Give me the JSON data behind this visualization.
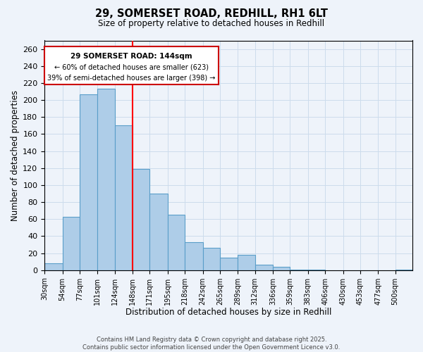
{
  "title": "29, SOMERSET ROAD, REDHILL, RH1 6LT",
  "subtitle": "Size of property relative to detached houses in Redhill",
  "xlabel": "Distribution of detached houses by size in Redhill",
  "ylabel": "Number of detached properties",
  "bar_labels": [
    "30sqm",
    "54sqm",
    "77sqm",
    "101sqm",
    "124sqm",
    "148sqm",
    "171sqm",
    "195sqm",
    "218sqm",
    "242sqm",
    "265sqm",
    "289sqm",
    "312sqm",
    "336sqm",
    "359sqm",
    "383sqm",
    "406sqm",
    "430sqm",
    "453sqm",
    "477sqm",
    "500sqm"
  ],
  "bar_values": [
    8,
    63,
    207,
    213,
    170,
    119,
    90,
    65,
    33,
    26,
    15,
    18,
    6,
    4,
    1,
    1,
    0,
    0,
    0,
    0,
    1
  ],
  "bin_edges": [
    30,
    54,
    77,
    101,
    124,
    148,
    171,
    195,
    218,
    242,
    265,
    289,
    312,
    336,
    359,
    383,
    406,
    430,
    453,
    477,
    500
  ],
  "bar_color": "#aecde8",
  "bar_edge_color": "#5a9ec9",
  "grid_color": "#ccdcec",
  "background_color": "#eef3fa",
  "red_line_x": 148,
  "annotation_title": "29 SOMERSET ROAD: 144sqm",
  "annotation_line1": "← 60% of detached houses are smaller (623)",
  "annotation_line2": "39% of semi-detached houses are larger (398) →",
  "annotation_box_color": "#ffffff",
  "annotation_box_edge_color": "#cc0000",
  "ylim": [
    0,
    270
  ],
  "yticks": [
    0,
    20,
    40,
    60,
    80,
    100,
    120,
    140,
    160,
    180,
    200,
    220,
    240,
    260
  ],
  "footer1": "Contains HM Land Registry data © Crown copyright and database right 2025.",
  "footer2": "Contains public sector information licensed under the Open Government Licence v3.0."
}
